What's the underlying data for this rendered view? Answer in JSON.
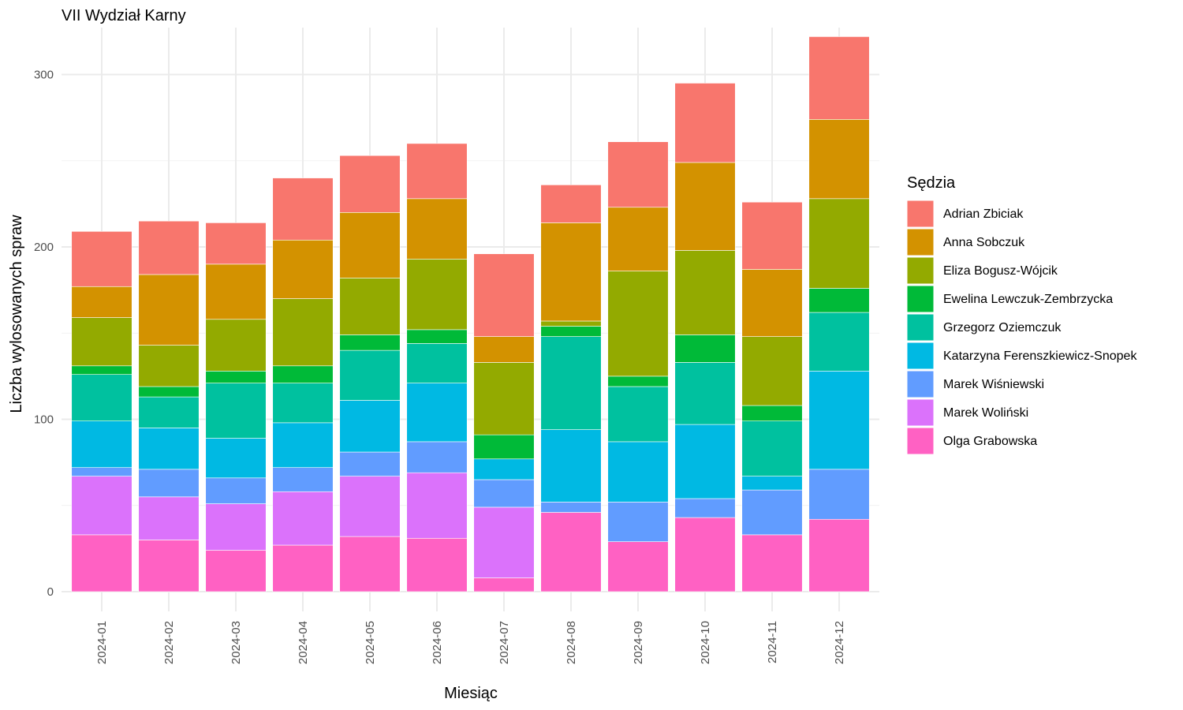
{
  "chart_data": {
    "type": "bar",
    "stacked": true,
    "title": "VII Wydział Karny",
    "xlabel": "Miesiąc",
    "ylabel": "Liczba wylosowanych spraw",
    "ylim": [
      0,
      325
    ],
    "yticks": [
      0,
      100,
      200,
      300
    ],
    "grid": true,
    "legend_title": "Sędzia",
    "legend_position": "right",
    "categories": [
      "2024-01",
      "2024-02",
      "2024-03",
      "2024-04",
      "2024-05",
      "2024-06",
      "2024-07",
      "2024-08",
      "2024-09",
      "2024-10",
      "2024-11",
      "2024-12"
    ],
    "series": [
      {
        "name": "Olga Grabowska",
        "color": "#FF61C3",
        "values": [
          33,
          30,
          24,
          27,
          32,
          31,
          8,
          46,
          29,
          43,
          33,
          42
        ]
      },
      {
        "name": "Marek Woliński",
        "color": "#DB72FB",
        "values": [
          34,
          25,
          27,
          31,
          35,
          38,
          41,
          0,
          0,
          0,
          0,
          0
        ]
      },
      {
        "name": "Marek Wiśniewski",
        "color": "#619CFF",
        "values": [
          5,
          16,
          15,
          14,
          14,
          18,
          16,
          6,
          23,
          11,
          26,
          29
        ]
      },
      {
        "name": "Katarzyna Ferenszkiewicz-Snopek",
        "color": "#00B9E3",
        "values": [
          27,
          24,
          23,
          26,
          30,
          34,
          12,
          42,
          35,
          43,
          8,
          57
        ]
      },
      {
        "name": "Grzegorz Oziemczuk",
        "color": "#00C19F",
        "values": [
          27,
          18,
          32,
          23,
          29,
          23,
          0,
          54,
          32,
          36,
          32,
          34
        ]
      },
      {
        "name": "Ewelina Lewczuk-Zembrzycka",
        "color": "#00BA38",
        "values": [
          5,
          6,
          7,
          10,
          9,
          8,
          14,
          6,
          6,
          16,
          9,
          14
        ]
      },
      {
        "name": "Eliza Bogusz-Wójcik",
        "color": "#93AA00",
        "values": [
          28,
          24,
          30,
          39,
          33,
          41,
          42,
          3,
          61,
          49,
          40,
          52
        ]
      },
      {
        "name": "Anna Sobczuk",
        "color": "#D39200",
        "values": [
          18,
          41,
          32,
          34,
          38,
          35,
          15,
          57,
          37,
          51,
          39,
          46
        ]
      },
      {
        "name": "Adrian Zbiciak",
        "color": "#F8766D",
        "values": [
          32,
          31,
          24,
          36,
          33,
          32,
          48,
          22,
          38,
          46,
          39,
          48
        ]
      }
    ]
  }
}
